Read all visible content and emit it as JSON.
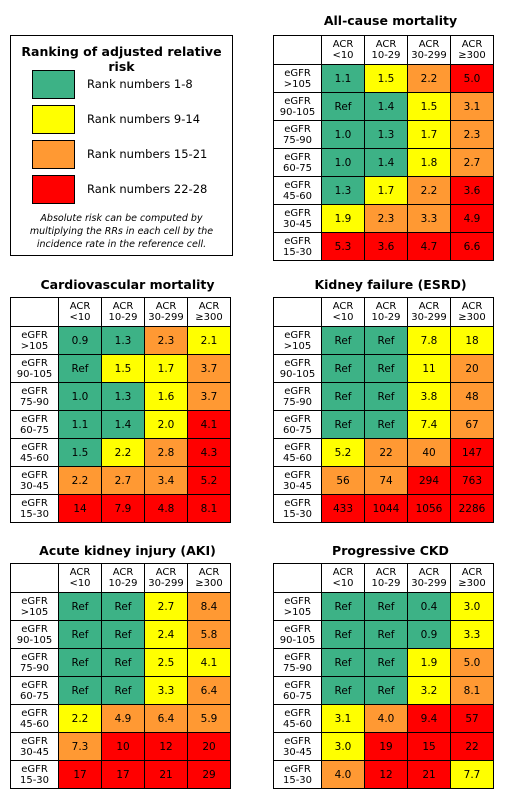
{
  "legend": {
    "title": "Ranking of adjusted relative risk",
    "items": [
      {
        "label": "Rank numbers 1-8",
        "color": "#3db286"
      },
      {
        "label": "Rank numbers 9-14",
        "color": "#ffff00"
      },
      {
        "label": "Rank numbers 15-21",
        "color": "#ff9933"
      },
      {
        "label": "Rank numbers 22-28",
        "color": "#ff0000"
      }
    ],
    "note": "Absolute risk can be computed by multiplying the RRs in each cell by the incidence rate in the reference cell."
  },
  "rank_colors": {
    "1": "#3db286",
    "2": "#ffff00",
    "3": "#ff9933",
    "4": "#ff0000"
  },
  "chart_data": [
    {
      "type": "heatmap",
      "title": "All-cause mortality",
      "columns": [
        [
          "ACR",
          "<10"
        ],
        [
          "ACR",
          "10-29"
        ],
        [
          "ACR",
          "30-299"
        ],
        [
          "ACR",
          "≥300"
        ]
      ],
      "rows": [
        [
          "eGFR",
          ">105"
        ],
        [
          "eGFR",
          "90-105"
        ],
        [
          "eGFR",
          "75-90"
        ],
        [
          "eGFR",
          "60-75"
        ],
        [
          "eGFR",
          "45-60"
        ],
        [
          "eGFR",
          "30-45"
        ],
        [
          "eGFR",
          "15-30"
        ]
      ],
      "values": [
        [
          "1.1",
          "1.5",
          "2.2",
          "5.0"
        ],
        [
          "Ref",
          "1.4",
          "1.5",
          "3.1"
        ],
        [
          "1.0",
          "1.3",
          "1.7",
          "2.3"
        ],
        [
          "1.0",
          "1.4",
          "1.8",
          "2.7"
        ],
        [
          "1.3",
          "1.7",
          "2.2",
          "3.6"
        ],
        [
          "1.9",
          "2.3",
          "3.3",
          "4.9"
        ],
        [
          "5.3",
          "3.6",
          "4.7",
          "6.6"
        ]
      ],
      "rank_groups": [
        [
          1,
          2,
          3,
          4
        ],
        [
          1,
          1,
          2,
          3
        ],
        [
          1,
          1,
          2,
          3
        ],
        [
          1,
          1,
          2,
          3
        ],
        [
          1,
          2,
          3,
          4
        ],
        [
          2,
          3,
          3,
          4
        ],
        [
          4,
          4,
          4,
          4
        ]
      ]
    },
    {
      "type": "heatmap",
      "title": "Cardiovascular mortality",
      "columns": [
        [
          "ACR",
          "<10"
        ],
        [
          "ACR",
          "10-29"
        ],
        [
          "ACR",
          "30-299"
        ],
        [
          "ACR",
          "≥300"
        ]
      ],
      "rows": [
        [
          "eGFR",
          ">105"
        ],
        [
          "eGFR",
          "90-105"
        ],
        [
          "eGFR",
          "75-90"
        ],
        [
          "eGFR",
          "60-75"
        ],
        [
          "eGFR",
          "45-60"
        ],
        [
          "eGFR",
          "30-45"
        ],
        [
          "eGFR",
          "15-30"
        ]
      ],
      "values": [
        [
          "0.9",
          "1.3",
          "2.3",
          "2.1"
        ],
        [
          "Ref",
          "1.5",
          "1.7",
          "3.7"
        ],
        [
          "1.0",
          "1.3",
          "1.6",
          "3.7"
        ],
        [
          "1.1",
          "1.4",
          "2.0",
          "4.1"
        ],
        [
          "1.5",
          "2.2",
          "2.8",
          "4.3"
        ],
        [
          "2.2",
          "2.7",
          "3.4",
          "5.2"
        ],
        [
          "14",
          "7.9",
          "4.8",
          "8.1"
        ]
      ],
      "rank_groups": [
        [
          1,
          1,
          3,
          2
        ],
        [
          1,
          2,
          2,
          3
        ],
        [
          1,
          1,
          2,
          3
        ],
        [
          1,
          1,
          2,
          4
        ],
        [
          1,
          2,
          3,
          4
        ],
        [
          3,
          3,
          3,
          4
        ],
        [
          4,
          4,
          4,
          4
        ]
      ]
    },
    {
      "type": "heatmap",
      "title": "Kidney failure (ESRD)",
      "columns": [
        [
          "ACR",
          "<10"
        ],
        [
          "ACR",
          "10-29"
        ],
        [
          "ACR",
          "30-299"
        ],
        [
          "ACR",
          "≥300"
        ]
      ],
      "rows": [
        [
          "eGFR",
          ">105"
        ],
        [
          "eGFR",
          "90-105"
        ],
        [
          "eGFR",
          "75-90"
        ],
        [
          "eGFR",
          "60-75"
        ],
        [
          "eGFR",
          "45-60"
        ],
        [
          "eGFR",
          "30-45"
        ],
        [
          "eGFR",
          "15-30"
        ]
      ],
      "values": [
        [
          "Ref",
          "Ref",
          "7.8",
          "18"
        ],
        [
          "Ref",
          "Ref",
          "11",
          "20"
        ],
        [
          "Ref",
          "Ref",
          "3.8",
          "48"
        ],
        [
          "Ref",
          "Ref",
          "7.4",
          "67"
        ],
        [
          "5.2",
          "22",
          "40",
          "147"
        ],
        [
          "56",
          "74",
          "294",
          "763"
        ],
        [
          "433",
          "1044",
          "1056",
          "2286"
        ]
      ],
      "rank_groups": [
        [
          1,
          1,
          2,
          2
        ],
        [
          1,
          1,
          2,
          3
        ],
        [
          1,
          1,
          2,
          3
        ],
        [
          1,
          1,
          2,
          3
        ],
        [
          2,
          3,
          3,
          4
        ],
        [
          3,
          3,
          4,
          4
        ],
        [
          4,
          4,
          4,
          4
        ]
      ]
    },
    {
      "type": "heatmap",
      "title": "Acute kidney injury (AKI)",
      "columns": [
        [
          "ACR",
          "<10"
        ],
        [
          "ACR",
          "10-29"
        ],
        [
          "ACR",
          "30-299"
        ],
        [
          "ACR",
          "≥300"
        ]
      ],
      "rows": [
        [
          "eGFR",
          ">105"
        ],
        [
          "eGFR",
          "90-105"
        ],
        [
          "eGFR",
          "75-90"
        ],
        [
          "eGFR",
          "60-75"
        ],
        [
          "eGFR",
          "45-60"
        ],
        [
          "eGFR",
          "30-45"
        ],
        [
          "eGFR",
          "15-30"
        ]
      ],
      "values": [
        [
          "Ref",
          "Ref",
          "2.7",
          "8.4"
        ],
        [
          "Ref",
          "Ref",
          "2.4",
          "5.8"
        ],
        [
          "Ref",
          "Ref",
          "2.5",
          "4.1"
        ],
        [
          "Ref",
          "Ref",
          "3.3",
          "6.4"
        ],
        [
          "2.2",
          "4.9",
          "6.4",
          "5.9"
        ],
        [
          "7.3",
          "10",
          "12",
          "20"
        ],
        [
          "17",
          "17",
          "21",
          "29"
        ]
      ],
      "rank_groups": [
        [
          1,
          1,
          2,
          3
        ],
        [
          1,
          1,
          2,
          3
        ],
        [
          1,
          1,
          2,
          2
        ],
        [
          1,
          1,
          2,
          3
        ],
        [
          2,
          3,
          3,
          3
        ],
        [
          3,
          4,
          4,
          4
        ],
        [
          4,
          4,
          4,
          4
        ]
      ]
    },
    {
      "type": "heatmap",
      "title": "Progressive CKD",
      "columns": [
        [
          "ACR",
          "<10"
        ],
        [
          "ACR",
          "10-29"
        ],
        [
          "ACR",
          "30-299"
        ],
        [
          "ACR",
          "≥300"
        ]
      ],
      "rows": [
        [
          "eGFR",
          ">105"
        ],
        [
          "eGFR",
          "90-105"
        ],
        [
          "eGFR",
          "75-90"
        ],
        [
          "eGFR",
          "60-75"
        ],
        [
          "eGFR",
          "45-60"
        ],
        [
          "eGFR",
          "30-45"
        ],
        [
          "eGFR",
          "15-30"
        ]
      ],
      "values": [
        [
          "Ref",
          "Ref",
          "0.4",
          "3.0"
        ],
        [
          "Ref",
          "Ref",
          "0.9",
          "3.3"
        ],
        [
          "Ref",
          "Ref",
          "1.9",
          "5.0"
        ],
        [
          "Ref",
          "Ref",
          "3.2",
          "8.1"
        ],
        [
          "3.1",
          "4.0",
          "9.4",
          "57"
        ],
        [
          "3.0",
          "19",
          "15",
          "22"
        ],
        [
          "4.0",
          "12",
          "21",
          "7.7"
        ]
      ],
      "rank_groups": [
        [
          1,
          1,
          1,
          2
        ],
        [
          1,
          1,
          1,
          2
        ],
        [
          1,
          1,
          2,
          3
        ],
        [
          1,
          1,
          2,
          3
        ],
        [
          2,
          3,
          4,
          4
        ],
        [
          2,
          4,
          4,
          4
        ],
        [
          3,
          4,
          4,
          2
        ]
      ]
    }
  ]
}
